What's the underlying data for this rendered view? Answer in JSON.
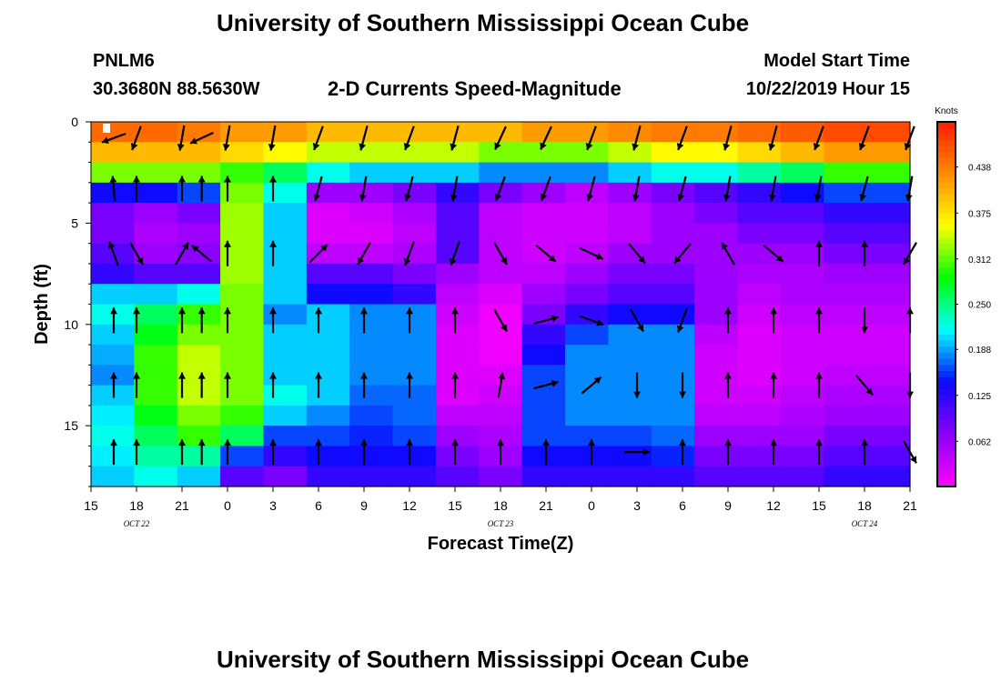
{
  "page": {
    "title_top": "University of Southern Mississippi Ocean Cube",
    "title_bottom": "University of Southern Mississippi Ocean Cube",
    "station": "PNLM6",
    "coords": "30.3680N 88.5630W",
    "subtitle": "2-D Currents Speed-Magnitude",
    "model_start_label": "Model Start Time",
    "model_start_value": "10/22/2019 Hour 15"
  },
  "chart_data": {
    "type": "heatmap",
    "title": "2-D Currents Speed-Magnitude",
    "xlabel": "Forecast Time(Z)",
    "ylabel": "Depth (ft)",
    "x_tick_labels": [
      "15",
      "18",
      "21",
      "0",
      "3",
      "6",
      "9",
      "12",
      "15",
      "18",
      "21",
      "0",
      "3",
      "6",
      "9",
      "12",
      "15",
      "18",
      "21"
    ],
    "date_labels": [
      {
        "text": "OCT 22",
        "hour_offset": 3
      },
      {
        "text": "OCT 23",
        "hour_offset": 27
      },
      {
        "text": "OCT 24",
        "hour_offset": 51
      }
    ],
    "xlim_hours": [
      0,
      54
    ],
    "y_ticks": [
      0,
      5,
      10,
      15
    ],
    "ylim_ft": [
      0,
      18
    ],
    "colorbar": {
      "label": "Knots",
      "range": [
        0,
        0.5
      ],
      "tick_labels": [
        "0.438",
        "0.375",
        "0.312",
        "0.250",
        "0.188",
        "0.125",
        "0.062"
      ],
      "tick_values": [
        0.438,
        0.375,
        0.312,
        0.25,
        0.188,
        0.125,
        0.062
      ],
      "colors": [
        "#ff00ff",
        "#8a00ff",
        "#0a0aff",
        "#00ffff",
        "#00ff00",
        "#ffff00",
        "#ff8c00",
        "#ff1a00"
      ]
    },
    "speed_knots": [
      {
        "hour": 0,
        "profile": [
          0.45,
          0.4,
          0.32,
          0.14,
          0.08,
          0.08,
          0.1,
          0.12,
          0.2,
          0.22,
          0.2,
          0.19,
          0.18,
          0.2,
          0.21,
          0.22,
          0.21,
          0.2
        ]
      },
      {
        "hour": 3,
        "profile": [
          0.45,
          0.4,
          0.32,
          0.14,
          0.06,
          0.05,
          0.06,
          0.1,
          0.2,
          0.26,
          0.28,
          0.3,
          0.3,
          0.3,
          0.28,
          0.26,
          0.24,
          0.22
        ]
      },
      {
        "hour": 6,
        "profile": [
          0.44,
          0.4,
          0.32,
          0.16,
          0.08,
          0.06,
          0.07,
          0.1,
          0.22,
          0.3,
          0.32,
          0.34,
          0.34,
          0.34,
          0.32,
          0.3,
          0.24,
          0.2
        ]
      },
      {
        "hour": 9,
        "profile": [
          0.42,
          0.38,
          0.3,
          0.32,
          0.33,
          0.33,
          0.33,
          0.33,
          0.32,
          0.32,
          0.32,
          0.32,
          0.32,
          0.32,
          0.3,
          0.26,
          0.16,
          0.1
        ]
      },
      {
        "hour": 12,
        "profile": [
          0.42,
          0.36,
          0.26,
          0.22,
          0.2,
          0.2,
          0.2,
          0.2,
          0.2,
          0.18,
          0.2,
          0.2,
          0.2,
          0.22,
          0.2,
          0.16,
          0.12,
          0.08
        ]
      },
      {
        "hour": 15,
        "profile": [
          0.4,
          0.34,
          0.22,
          0.06,
          0.02,
          0.02,
          0.04,
          0.1,
          0.14,
          0.2,
          0.2,
          0.2,
          0.2,
          0.2,
          0.18,
          0.16,
          0.14,
          0.12
        ]
      },
      {
        "hour": 18,
        "profile": [
          0.4,
          0.34,
          0.2,
          0.06,
          0.03,
          0.02,
          0.04,
          0.1,
          0.14,
          0.18,
          0.18,
          0.18,
          0.18,
          0.17,
          0.16,
          0.15,
          0.14,
          0.12
        ]
      },
      {
        "hour": 21,
        "profile": [
          0.4,
          0.34,
          0.2,
          0.08,
          0.05,
          0.04,
          0.05,
          0.08,
          0.12,
          0.18,
          0.18,
          0.18,
          0.18,
          0.17,
          0.17,
          0.16,
          0.14,
          0.12
        ]
      },
      {
        "hour": 24,
        "profile": [
          0.4,
          0.34,
          0.2,
          0.12,
          0.1,
          0.1,
          0.1,
          0.06,
          0.04,
          0.03,
          0.02,
          0.02,
          0.02,
          0.02,
          0.04,
          0.06,
          0.08,
          0.1
        ]
      },
      {
        "hour": 27,
        "profile": [
          0.4,
          0.32,
          0.18,
          0.08,
          0.04,
          0.04,
          0.04,
          0.04,
          0.02,
          0.01,
          0.01,
          0.01,
          0.02,
          0.03,
          0.04,
          0.05,
          0.06,
          0.08
        ]
      },
      {
        "hour": 30,
        "profile": [
          0.42,
          0.32,
          0.18,
          0.06,
          0.03,
          0.03,
          0.03,
          0.04,
          0.06,
          0.08,
          0.12,
          0.14,
          0.16,
          0.16,
          0.16,
          0.16,
          0.14,
          0.12
        ]
      },
      {
        "hour": 33,
        "profile": [
          0.42,
          0.32,
          0.18,
          0.04,
          0.03,
          0.03,
          0.04,
          0.06,
          0.08,
          0.12,
          0.16,
          0.18,
          0.18,
          0.18,
          0.18,
          0.16,
          0.14,
          0.12
        ]
      },
      {
        "hour": 36,
        "profile": [
          0.43,
          0.34,
          0.2,
          0.06,
          0.04,
          0.04,
          0.06,
          0.08,
          0.1,
          0.14,
          0.18,
          0.18,
          0.18,
          0.18,
          0.18,
          0.16,
          0.14,
          0.12
        ]
      },
      {
        "hour": 39,
        "profile": [
          0.44,
          0.36,
          0.22,
          0.08,
          0.06,
          0.06,
          0.06,
          0.08,
          0.1,
          0.14,
          0.18,
          0.18,
          0.18,
          0.18,
          0.18,
          0.17,
          0.15,
          0.12
        ]
      },
      {
        "hour": 42,
        "profile": [
          0.44,
          0.36,
          0.22,
          0.1,
          0.08,
          0.06,
          0.06,
          0.06,
          0.06,
          0.06,
          0.04,
          0.03,
          0.03,
          0.03,
          0.04,
          0.06,
          0.08,
          0.1
        ]
      },
      {
        "hour": 45,
        "profile": [
          0.45,
          0.38,
          0.24,
          0.12,
          0.1,
          0.08,
          0.06,
          0.05,
          0.04,
          0.03,
          0.02,
          0.02,
          0.02,
          0.03,
          0.04,
          0.06,
          0.08,
          0.1
        ]
      },
      {
        "hour": 48,
        "profile": [
          0.46,
          0.4,
          0.26,
          0.14,
          0.1,
          0.08,
          0.06,
          0.05,
          0.05,
          0.04,
          0.03,
          0.03,
          0.03,
          0.04,
          0.05,
          0.06,
          0.08,
          0.1
        ]
      },
      {
        "hour": 51,
        "profile": [
          0.47,
          0.42,
          0.3,
          0.16,
          0.12,
          0.1,
          0.08,
          0.06,
          0.05,
          0.04,
          0.03,
          0.03,
          0.04,
          0.05,
          0.06,
          0.08,
          0.1,
          0.12
        ]
      },
      {
        "hour": 54,
        "profile": [
          0.47,
          0.42,
          0.3,
          0.16,
          0.12,
          0.1,
          0.08,
          0.06,
          0.05,
          0.04,
          0.03,
          0.03,
          0.04,
          0.05,
          0.06,
          0.08,
          0.1,
          0.12
        ]
      }
    ],
    "vector_depths_ft": [
      0.8,
      3.3,
      6.5,
      9.8,
      13.0,
      16.3
    ],
    "vectors": [
      {
        "hour": 1.5,
        "dirs": [
          250,
          355,
          340,
          0,
          0,
          0
        ]
      },
      {
        "hour": 3,
        "dirs": [
          200,
          0,
          150,
          0,
          0,
          0
        ]
      },
      {
        "hour": 6,
        "dirs": [
          190,
          0,
          30,
          0,
          0,
          0
        ]
      },
      {
        "hour": 7.3,
        "dirs": [
          245,
          0,
          310,
          0,
          0,
          0
        ]
      },
      {
        "hour": 9,
        "dirs": [
          190,
          0,
          0,
          0,
          0,
          0
        ]
      },
      {
        "hour": 12,
        "dirs": [
          190,
          0,
          0,
          0,
          0,
          0
        ]
      },
      {
        "hour": 15,
        "dirs": [
          200,
          195,
          45,
          0,
          0,
          0
        ]
      },
      {
        "hour": 18,
        "dirs": [
          195,
          190,
          210,
          0,
          0,
          0
        ]
      },
      {
        "hour": 21,
        "dirs": [
          200,
          195,
          200,
          0,
          0,
          0
        ]
      },
      {
        "hour": 24,
        "dirs": [
          195,
          190,
          200,
          0,
          0,
          0
        ]
      },
      {
        "hour": 27,
        "dirs": [
          205,
          200,
          150,
          150,
          10,
          0
        ]
      },
      {
        "hour": 30,
        "dirs": [
          205,
          200,
          130,
          75,
          75,
          0
        ]
      },
      {
        "hour": 33,
        "dirs": [
          200,
          195,
          115,
          110,
          50,
          0
        ]
      },
      {
        "hour": 36,
        "dirs": [
          195,
          190,
          140,
          150,
          180,
          90
        ]
      },
      {
        "hour": 39,
        "dirs": [
          200,
          195,
          220,
          200,
          180,
          0
        ]
      },
      {
        "hour": 42,
        "dirs": [
          195,
          190,
          330,
          0,
          0,
          0
        ]
      },
      {
        "hour": 45,
        "dirs": [
          195,
          190,
          130,
          0,
          0,
          0
        ]
      },
      {
        "hour": 48,
        "dirs": [
          200,
          190,
          0,
          0,
          0,
          0
        ]
      },
      {
        "hour": 51,
        "dirs": [
          200,
          195,
          0,
          180,
          140,
          0
        ]
      },
      {
        "hour": 54,
        "dirs": [
          200,
          190,
          210,
          0,
          180,
          150
        ]
      }
    ]
  }
}
